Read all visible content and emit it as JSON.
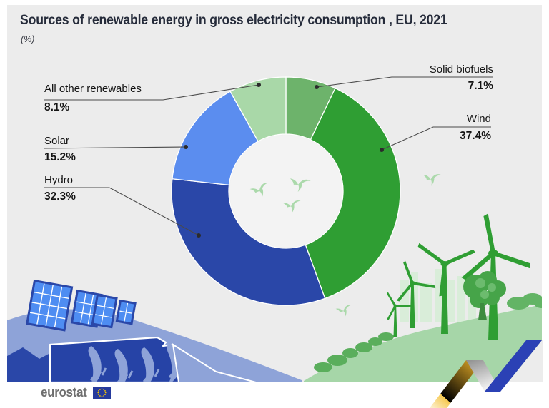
{
  "title": "Sources of renewable energy in gross electricity consumption , EU, 2021",
  "subtitle": "(%)",
  "chart_data": {
    "type": "donut",
    "unit": "%",
    "start_angle_deg": 0,
    "direction": "clockwise",
    "inner_radius_ratio": 0.5,
    "slices": [
      {
        "label": "Solid biofuels",
        "value": 7.1,
        "pct_label": "7.1%",
        "color": "#6db36b"
      },
      {
        "label": "Wind",
        "value": 37.4,
        "pct_label": "37.4%",
        "color": "#2f9e33"
      },
      {
        "label": "Hydro",
        "value": 32.3,
        "pct_label": "32.3%",
        "color": "#2a47a8"
      },
      {
        "label": "Solar",
        "value": 15.2,
        "pct_label": "15.2%",
        "color": "#5b8def"
      },
      {
        "label": "All other renewables",
        "value": 8.1,
        "pct_label": "8.1%",
        "color": "#a9d8a8"
      }
    ]
  },
  "branding": {
    "logo_text": "eurostat"
  },
  "colors": {
    "panel_background": "#ececec",
    "donut_hole": "#f3f3f3",
    "leader_line": "#4a4a4a",
    "bird_green": "#abd9ab",
    "hill_green": "#a6d6a8",
    "turbine_green": "#2f9e33",
    "hill_periwinkle": "#8ea3d8",
    "dam_blue": "#2a47a8",
    "solar_cell_blue": "#4e8df2",
    "ribbon_yellow": "#f2b62a",
    "ribbon_grey": "#9c9c9c",
    "ribbon_blue": "#2b41b5",
    "flag_blue": "#263a9d",
    "flag_star_yellow": "#f7c600"
  }
}
